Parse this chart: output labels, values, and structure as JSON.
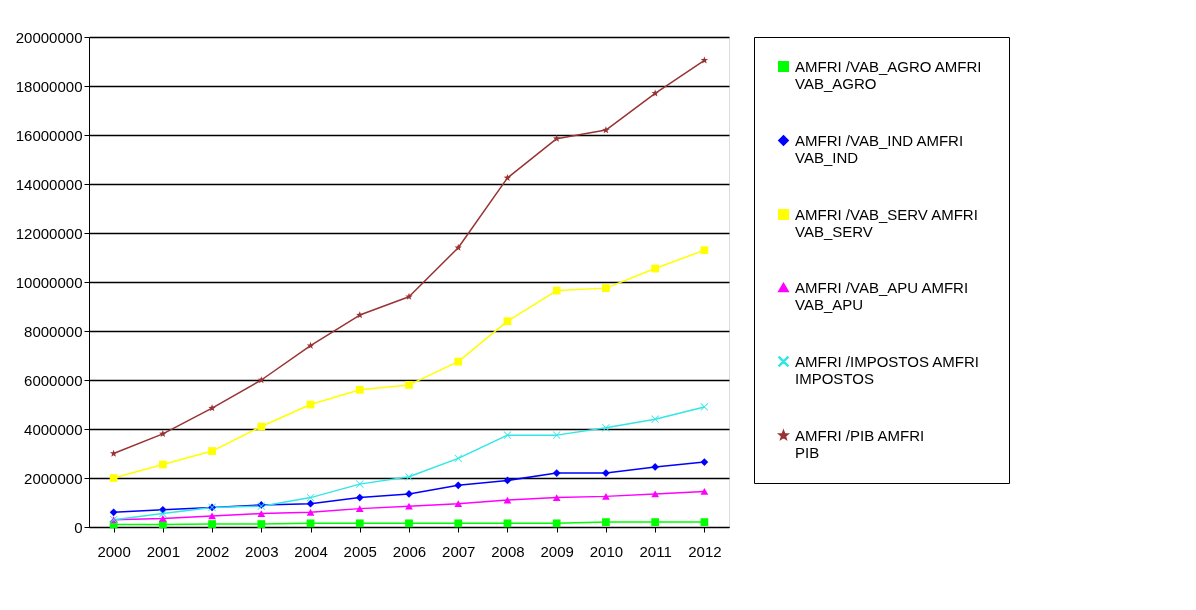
{
  "chart_data": {
    "type": "line",
    "categories": [
      "2000",
      "2001",
      "2002",
      "2003",
      "2004",
      "2005",
      "2006",
      "2007",
      "2008",
      "2009",
      "2010",
      "2011",
      "2012"
    ],
    "series": [
      {
        "name": "AMFRI /VAB_AGRO  AMFRI VAB_AGRO",
        "color": "#00ff00",
        "marker": "square",
        "values": [
          100000,
          100000,
          120000,
          120000,
          150000,
          150000,
          150000,
          150000,
          150000,
          150000,
          200000,
          200000,
          200000
        ]
      },
      {
        "name": "AMFRI /VAB_IND  AMFRI VAB_IND",
        "color": "#0000ff",
        "marker": "diamond",
        "values": [
          600000,
          700000,
          800000,
          900000,
          950000,
          1200000,
          1350000,
          1700000,
          1900000,
          2200000,
          2200000,
          2450000,
          2650000
        ]
      },
      {
        "name": "AMFRI /VAB_SERV  AMFRI VAB_SERV",
        "color": "#ffff00",
        "marker": "square",
        "values": [
          2000000,
          2550000,
          3100000,
          4100000,
          5000000,
          5600000,
          5800000,
          6750000,
          8400000,
          9650000,
          9750000,
          10550000,
          11300000
        ]
      },
      {
        "name": "AMFRI /VAB_APU  AMFRI VAB_APU",
        "color": "#ff00ff",
        "marker": "triangle",
        "values": [
          300000,
          350000,
          450000,
          550000,
          600000,
          750000,
          850000,
          950000,
          1100000,
          1200000,
          1250000,
          1350000,
          1450000
        ]
      },
      {
        "name": "AMFRI /IMPOSTOS  AMFRI IMPOSTOS",
        "color": "#33e6e6",
        "marker": "cross",
        "values": [
          300000,
          550000,
          800000,
          850000,
          1200000,
          1750000,
          2050000,
          2800000,
          3750000,
          3750000,
          4050000,
          4400000,
          4900000
        ]
      },
      {
        "name": "AMFRI /PIB AMFRI PIB",
        "color": "#993333",
        "marker": "star",
        "values": [
          3000000,
          3800000,
          4850000,
          6000000,
          7400000,
          8650000,
          9400000,
          11400000,
          14250000,
          15850000,
          16200000,
          17700000,
          19050000
        ]
      }
    ],
    "ylim": [
      0,
      20000000
    ],
    "yticks": [
      0,
      2000000,
      4000000,
      6000000,
      8000000,
      10000000,
      12000000,
      14000000,
      16000000,
      18000000,
      20000000
    ],
    "grid": "y",
    "legend": "right",
    "line_style": "solid"
  }
}
